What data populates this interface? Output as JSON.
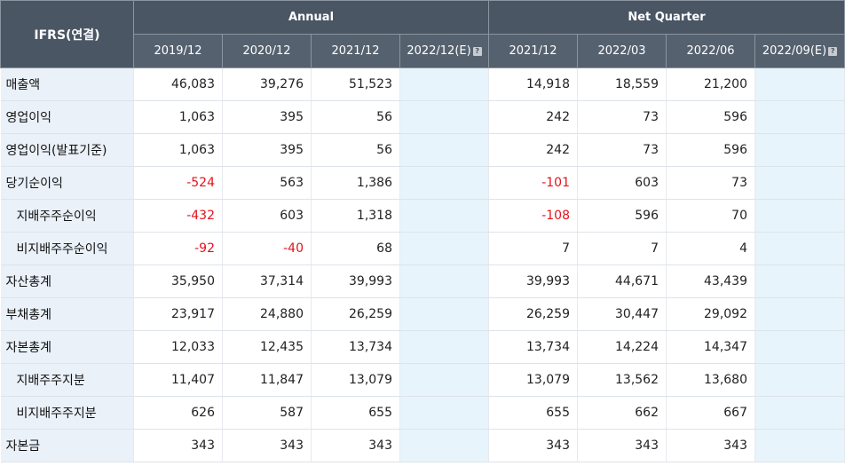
{
  "header": {
    "corner": "IFRS(연결)",
    "annual_label": "Annual",
    "quarter_label": "Net Quarter",
    "annual_periods": [
      "2019/12",
      "2020/12",
      "2021/12",
      "2022/12(E)"
    ],
    "quarter_periods": [
      "2021/12",
      "2022/03",
      "2022/06",
      "2022/09(E)"
    ],
    "help_icon": "question-icon"
  },
  "colors": {
    "negative": "#e4131b",
    "header_bg": "#4a5664",
    "label_bg": "#eaf1f9",
    "estimate_bg": "#e8f4fb"
  },
  "rows": [
    {
      "label": "매출액",
      "indent": false,
      "annual": [
        "46,083",
        "39,276",
        "51,523",
        ""
      ],
      "quarter": [
        "14,918",
        "18,559",
        "21,200",
        ""
      ]
    },
    {
      "label": "영업이익",
      "indent": false,
      "annual": [
        "1,063",
        "395",
        "56",
        ""
      ],
      "quarter": [
        "242",
        "73",
        "596",
        ""
      ]
    },
    {
      "label": "영업이익(발표기준)",
      "indent": false,
      "annual": [
        "1,063",
        "395",
        "56",
        ""
      ],
      "quarter": [
        "242",
        "73",
        "596",
        ""
      ]
    },
    {
      "label": "당기순이익",
      "indent": false,
      "annual": [
        "-524",
        "563",
        "1,386",
        ""
      ],
      "quarter": [
        "-101",
        "603",
        "73",
        ""
      ]
    },
    {
      "label": "지배주주순이익",
      "indent": true,
      "annual": [
        "-432",
        "603",
        "1,318",
        ""
      ],
      "quarter": [
        "-108",
        "596",
        "70",
        ""
      ]
    },
    {
      "label": "비지배주주순이익",
      "indent": true,
      "annual": [
        "-92",
        "-40",
        "68",
        ""
      ],
      "quarter": [
        "7",
        "7",
        "4",
        ""
      ]
    },
    {
      "label": "자산총계",
      "indent": false,
      "annual": [
        "35,950",
        "37,314",
        "39,993",
        ""
      ],
      "quarter": [
        "39,993",
        "44,671",
        "43,439",
        ""
      ]
    },
    {
      "label": "부채총계",
      "indent": false,
      "annual": [
        "23,917",
        "24,880",
        "26,259",
        ""
      ],
      "quarter": [
        "26,259",
        "30,447",
        "29,092",
        ""
      ]
    },
    {
      "label": "자본총계",
      "indent": false,
      "annual": [
        "12,033",
        "12,435",
        "13,734",
        ""
      ],
      "quarter": [
        "13,734",
        "14,224",
        "14,347",
        ""
      ]
    },
    {
      "label": "지배주주지분",
      "indent": true,
      "annual": [
        "11,407",
        "11,847",
        "13,079",
        ""
      ],
      "quarter": [
        "13,079",
        "13,562",
        "13,680",
        ""
      ]
    },
    {
      "label": "비지배주주지분",
      "indent": true,
      "annual": [
        "626",
        "587",
        "655",
        ""
      ],
      "quarter": [
        "655",
        "662",
        "667",
        ""
      ]
    },
    {
      "label": "자본금",
      "indent": false,
      "annual": [
        "343",
        "343",
        "343",
        ""
      ],
      "quarter": [
        "343",
        "343",
        "343",
        ""
      ]
    }
  ]
}
